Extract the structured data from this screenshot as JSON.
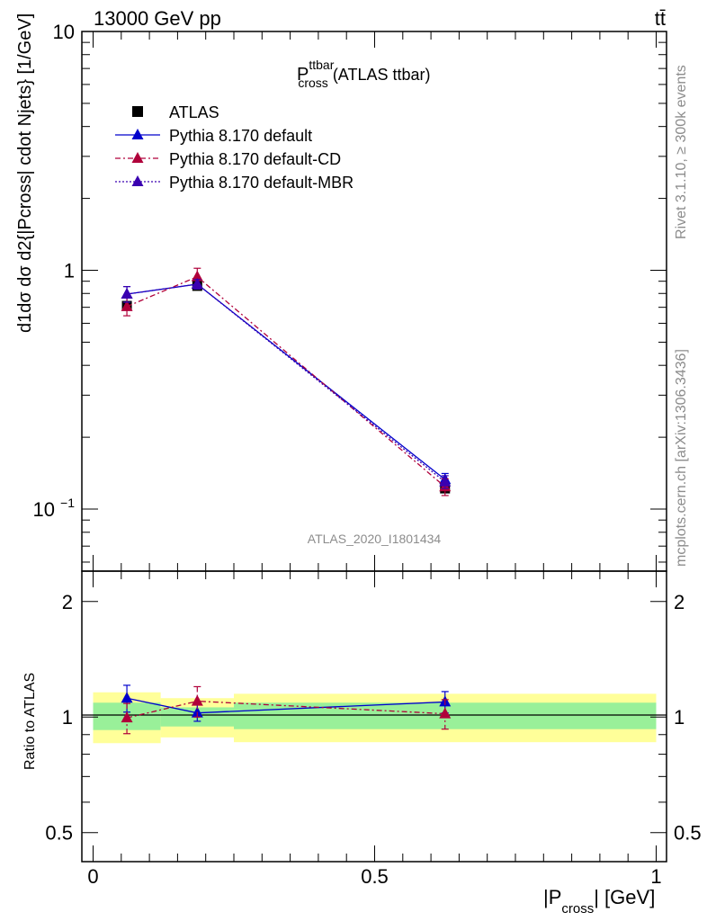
{
  "header": {
    "energy_label": "13000 GeV pp",
    "process_label": "tt̄"
  },
  "side_text": {
    "rivet": "Rivet 3.1.10, ≥ 300k events",
    "mcplots": "mcplots.cern.ch [arXiv:1306.3436]"
  },
  "analysis_label": "ATLAS_2020_I1801434",
  "plot_title": {
    "main": "P",
    "sup": "ttbar",
    "sub": "cross",
    "suffix": " (ATLAS ttbar)"
  },
  "y_axis_label_upper": "d1dσ dσ d2{|Pcross| cdot Njets} [1/GeV]",
  "y_axis_label_lower": "Ratio to ATLAS",
  "x_axis_label": {
    "main": "|P",
    "sub": "cross",
    "suffix": "| [GeV]"
  },
  "chart_data": [
    {
      "type": "scatter",
      "panel": "main",
      "yscale": "log",
      "ylim": [
        0.055,
        10
      ],
      "xlim": [
        -0.005,
        1.01
      ],
      "x_ticks": [
        "0",
        "0.5",
        "1"
      ],
      "y_ticks": [
        {
          "value": 0.1,
          "base": "10",
          "exp": "−1"
        },
        {
          "value": 1,
          "label": "1"
        },
        {
          "value": 10,
          "label": "10"
        }
      ],
      "x_bins": [
        [
          0,
          0.12
        ],
        [
          0.12,
          0.25
        ],
        [
          0.25,
          1.0
        ]
      ],
      "x": [
        0.06,
        0.185,
        0.625
      ],
      "series": [
        {
          "name": "ATLAS",
          "color": "#000000",
          "marker": "square",
          "line": "none",
          "values": [
            0.71,
            0.86,
            0.122
          ],
          "err": [
            0.02,
            0.02,
            0.003
          ]
        },
        {
          "name": "Pythia 8.170 default",
          "color": "#0000cc",
          "marker": "triangle",
          "line": "solid",
          "values": [
            0.795,
            0.875,
            0.133
          ],
          "err": [
            0.06,
            0.04,
            0.008
          ]
        },
        {
          "name": "Pythia 8.170 default-CD",
          "color": "#b0003a",
          "marker": "triangle",
          "line": "dashdot",
          "values": [
            0.705,
            0.94,
            0.124
          ],
          "err": [
            0.06,
            0.08,
            0.01
          ]
        },
        {
          "name": "Pythia 8.170 default-MBR",
          "color": "#3a00b0",
          "marker": "triangle",
          "line": "dotted",
          "values": [
            0.795,
            0.875,
            0.13
          ],
          "err": [
            0.06,
            0.04,
            0.008
          ]
        }
      ]
    },
    {
      "type": "scatter",
      "panel": "ratio",
      "ylabel": "Ratio to ATLAS",
      "yscale": "log",
      "ylim": [
        0.42,
        2.4
      ],
      "y_ticks": [
        "0.5",
        "1",
        "2"
      ],
      "x": [
        0.06,
        0.185,
        0.625
      ],
      "bands": {
        "yellow": [
          [
            0.855,
            1.16
          ],
          [
            0.885,
            1.12
          ],
          [
            0.86,
            1.15
          ]
        ],
        "green": [
          [
            0.925,
            1.09
          ],
          [
            0.945,
            1.06
          ],
          [
            0.93,
            1.09
          ]
        ]
      },
      "series": [
        {
          "name": "Pythia 8.170 default",
          "color": "#0000cc",
          "values": [
            1.12,
            1.025,
            1.095
          ],
          "err": [
            0.09,
            0.05,
            0.07
          ]
        },
        {
          "name": "Pythia 8.170 default-CD",
          "color": "#b0003a",
          "values": [
            0.995,
            1.1,
            1.02
          ],
          "err": [
            0.09,
            0.1,
            0.09
          ]
        }
      ]
    }
  ]
}
